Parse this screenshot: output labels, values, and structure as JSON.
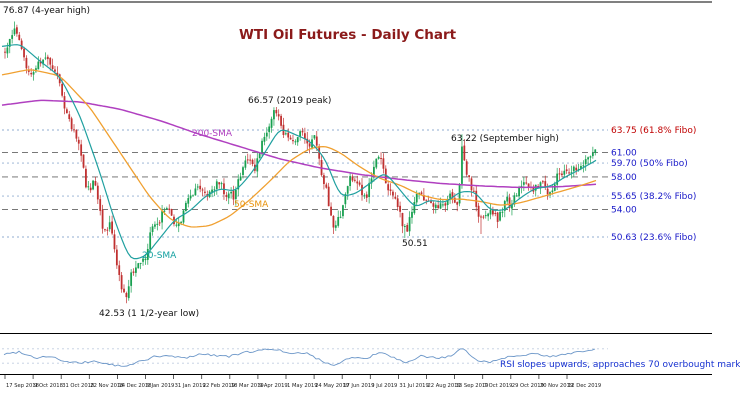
{
  "chart_data": {
    "type": "candlestick",
    "title": "WTI Oil Futures - Daily Chart",
    "xlabel": "",
    "ylabel": "",
    "ylim": [
      41,
      79
    ],
    "grid": false,
    "x_axis": {
      "labels": [
        "17 Sep 2018",
        "9 Oct 2018",
        "31 Oct 2018",
        "22 Nov 2018",
        "14 Dec 2018",
        "9 Jan 2019",
        "31 Jan 2019",
        "22 Feb 2019",
        "18 Mar 2019",
        "9 Apr 2019",
        "1 May 2019",
        "24 May 2019",
        "17 Jun 2019",
        "9 Jul 2019",
        "31 Jul 2019",
        "22 Aug 2019",
        "13 Sep 2019",
        "7 Oct 2019",
        "29 Oct 2019",
        "20 Nov 2019",
        "12 Dec 2019"
      ]
    },
    "levels": [
      {
        "price": 63.75,
        "label": "63.75 (61.8% Fibo)",
        "label_color": "#c00000",
        "line_style": "fibo"
      },
      {
        "price": 61.0,
        "label": "61.00",
        "label_color": "#1818c8",
        "line_style": "round"
      },
      {
        "price": 59.7,
        "label": "59.70 (50% Fibo)",
        "label_color": "#1818c8",
        "line_style": "fibo"
      },
      {
        "price": 58.0,
        "label": "58.00",
        "label_color": "#1818c8",
        "line_style": "round"
      },
      {
        "price": 55.65,
        "label": "55.65 (38.2% Fibo)",
        "label_color": "#1818c8",
        "line_style": "fibo"
      },
      {
        "price": 54.0,
        "label": "54.00",
        "label_color": "#1818c8",
        "line_style": "round"
      },
      {
        "price": 50.63,
        "label": "50.63 (23.6% Fibo)",
        "label_color": "#1818c8",
        "line_style": "fibo"
      }
    ],
    "key_points": {
      "four_year_high": 76.87,
      "year_and_half_low": 42.53,
      "peak_2019": 66.57,
      "september_high": 63.22,
      "august_low": 50.51
    },
    "annotations": [
      {
        "name": "four-year-high-label",
        "text": "76.87 (4-year high)",
        "x": 3,
        "y": 13
      },
      {
        "name": "peak-2019-label",
        "text": "66.57 (2019 peak)",
        "x": 248,
        "y": 103
      },
      {
        "name": "september-high-label",
        "text": "63.22 (September high)",
        "x": 451,
        "y": 141
      },
      {
        "name": "august-low-label",
        "text": "50.51",
        "x": 402,
        "y": 246
      },
      {
        "name": "year-low-label",
        "text": "42.53 (1 1/2-year low)",
        "x": 99,
        "y": 316
      },
      {
        "name": "sma200-label",
        "text": "200-SMA",
        "color": "#b040c0",
        "x": 192,
        "y": 136
      },
      {
        "name": "sma50-label",
        "text": "50-SMA",
        "color": "#e8920a",
        "x": 234,
        "y": 207
      },
      {
        "name": "sma20-label",
        "text": "20-SMA",
        "color": "#13a0a0",
        "x": 142,
        "y": 258
      }
    ],
    "price_path": [
      [
        5,
        73.5
      ],
      [
        12,
        75.5
      ],
      [
        15,
        76.3
      ],
      [
        20,
        74.8
      ],
      [
        26,
        71.5
      ],
      [
        32,
        70.8
      ],
      [
        38,
        72.2
      ],
      [
        46,
        72.6
      ],
      [
        52,
        71.8
      ],
      [
        58,
        70.0
      ],
      [
        64,
        67.0
      ],
      [
        70,
        64.5
      ],
      [
        76,
        63.2
      ],
      [
        82,
        60.5
      ],
      [
        86,
        57.0
      ],
      [
        90,
        56.5
      ],
      [
        94,
        58.0
      ],
      [
        98,
        55.5
      ],
      [
        102,
        52.0
      ],
      [
        106,
        51.5
      ],
      [
        110,
        52.5
      ],
      [
        114,
        50.0
      ],
      [
        118,
        46.5
      ],
      [
        122,
        44.0
      ],
      [
        126,
        43.2
      ],
      [
        130,
        45.5
      ],
      [
        134,
        46.8
      ],
      [
        138,
        47.5
      ],
      [
        142,
        48.0
      ],
      [
        146,
        47.8
      ],
      [
        150,
        51.0
      ],
      [
        154,
        52.3
      ],
      [
        158,
        52.0
      ],
      [
        162,
        53.5
      ],
      [
        166,
        54.0
      ],
      [
        170,
        53.8
      ],
      [
        174,
        52.5
      ],
      [
        178,
        51.8
      ],
      [
        182,
        53.0
      ],
      [
        186,
        54.5
      ],
      [
        190,
        55.5
      ],
      [
        194,
        55.8
      ],
      [
        198,
        57.0
      ],
      [
        202,
        56.5
      ],
      [
        206,
        55.3
      ],
      [
        210,
        55.8
      ],
      [
        214,
        56.8
      ],
      [
        218,
        57.3
      ],
      [
        222,
        56.8
      ],
      [
        226,
        55.8
      ],
      [
        230,
        56.5
      ],
      [
        234,
        55.5
      ],
      [
        238,
        57.5
      ],
      [
        242,
        59.0
      ],
      [
        246,
        60.0
      ],
      [
        250,
        60.3
      ],
      [
        254,
        58.8
      ],
      [
        258,
        60.5
      ],
      [
        262,
        62.0
      ],
      [
        266,
        63.5
      ],
      [
        270,
        64.0
      ],
      [
        274,
        65.9
      ],
      [
        278,
        65.8
      ],
      [
        282,
        63.8
      ],
      [
        286,
        63.1
      ],
      [
        290,
        62.5
      ],
      [
        294,
        61.8
      ],
      [
        298,
        63.3
      ],
      [
        302,
        63.6
      ],
      [
        306,
        62.0
      ],
      [
        310,
        61.5
      ],
      [
        314,
        63.0
      ],
      [
        318,
        61.0
      ],
      [
        322,
        58.0
      ],
      [
        326,
        56.8
      ],
      [
        330,
        53.8
      ],
      [
        334,
        51.8
      ],
      [
        338,
        53.3
      ],
      [
        342,
        53.5
      ],
      [
        346,
        56.5
      ],
      [
        350,
        57.8
      ],
      [
        354,
        58.0
      ],
      [
        358,
        57.5
      ],
      [
        362,
        56.0
      ],
      [
        366,
        55.5
      ],
      [
        370,
        57.5
      ],
      [
        374,
        59.5
      ],
      [
        378,
        60.2
      ],
      [
        382,
        60.0
      ],
      [
        386,
        57.0
      ],
      [
        390,
        55.8
      ],
      [
        394,
        56.3
      ],
      [
        398,
        54.5
      ],
      [
        402,
        52.5
      ],
      [
        406,
        51.2
      ],
      [
        410,
        52.8
      ],
      [
        414,
        55.0
      ],
      [
        418,
        56.8
      ],
      [
        422,
        55.3
      ],
      [
        426,
        54.8
      ],
      [
        430,
        55.0
      ],
      [
        434,
        54.5
      ],
      [
        438,
        53.8
      ],
      [
        442,
        55.0
      ],
      [
        446,
        54.3
      ],
      [
        450,
        56.0
      ],
      [
        454,
        55.0
      ],
      [
        458,
        54.8
      ],
      [
        462,
        61.5
      ],
      [
        466,
        59.0
      ],
      [
        470,
        57.2
      ],
      [
        474,
        55.8
      ],
      [
        478,
        53.5
      ],
      [
        482,
        52.5
      ],
      [
        486,
        53.0
      ],
      [
        490,
        54.3
      ],
      [
        494,
        53.3
      ],
      [
        498,
        52.8
      ],
      [
        502,
        54.0
      ],
      [
        506,
        55.5
      ],
      [
        510,
        54.5
      ],
      [
        514,
        55.3
      ],
      [
        518,
        56.5
      ],
      [
        522,
        57.2
      ],
      [
        526,
        56.8
      ],
      [
        530,
        57.3
      ],
      [
        534,
        56.3
      ],
      [
        538,
        57.0
      ],
      [
        542,
        57.8
      ],
      [
        546,
        56.5
      ],
      [
        550,
        55.8
      ],
      [
        554,
        57.3
      ],
      [
        558,
        58.3
      ],
      [
        562,
        58.6
      ],
      [
        566,
        59.0
      ],
      [
        570,
        58.5
      ],
      [
        574,
        59.3
      ],
      [
        578,
        58.8
      ],
      [
        582,
        59.5
      ],
      [
        586,
        60.0
      ],
      [
        590,
        60.8
      ],
      [
        594,
        61.2
      ]
    ],
    "spikes": [
      {
        "x": 15,
        "price": 76.87,
        "dir": "high"
      },
      {
        "x": 126,
        "price": 42.53,
        "dir": "low"
      },
      {
        "x": 276,
        "price": 66.57,
        "dir": "high"
      },
      {
        "x": 333,
        "price": 51.0,
        "dir": "low"
      },
      {
        "x": 406,
        "price": 50.51,
        "dir": "low"
      },
      {
        "x": 462,
        "price": 63.22,
        "dir": "high"
      },
      {
        "x": 480,
        "price": 51.0,
        "dir": "low"
      }
    ],
    "sma200": [
      [
        2,
        66.8
      ],
      [
        40,
        67.4
      ],
      [
        80,
        67.2
      ],
      [
        120,
        66.3
      ],
      [
        160,
        64.9
      ],
      [
        200,
        63.2
      ],
      [
        240,
        61.7
      ],
      [
        280,
        60.2
      ],
      [
        320,
        59.1
      ],
      [
        360,
        58.3
      ],
      [
        400,
        57.7
      ],
      [
        440,
        57.2
      ],
      [
        480,
        56.9
      ],
      [
        520,
        56.7
      ],
      [
        560,
        56.8
      ],
      [
        597,
        57.1
      ]
    ],
    "sma50": [
      [
        2,
        70.5
      ],
      [
        30,
        71.2
      ],
      [
        60,
        70.4
      ],
      [
        90,
        66.5
      ],
      [
        120,
        61.0
      ],
      [
        150,
        55.5
      ],
      [
        170,
        52.8
      ],
      [
        190,
        51.8
      ],
      [
        210,
        52.0
      ],
      [
        230,
        53.2
      ],
      [
        250,
        55.2
      ],
      [
        270,
        57.5
      ],
      [
        290,
        60.0
      ],
      [
        310,
        61.5
      ],
      [
        325,
        61.8
      ],
      [
        340,
        61.0
      ],
      [
        360,
        59.2
      ],
      [
        380,
        57.8
      ],
      [
        400,
        57.0
      ],
      [
        420,
        55.8
      ],
      [
        440,
        55.2
      ],
      [
        460,
        55.3
      ],
      [
        480,
        55.0
      ],
      [
        500,
        54.5
      ],
      [
        520,
        54.8
      ],
      [
        540,
        55.5
      ],
      [
        560,
        56.2
      ],
      [
        580,
        56.9
      ],
      [
        597,
        57.6
      ]
    ],
    "sma20": [
      [
        2,
        74.0
      ],
      [
        20,
        74.3
      ],
      [
        40,
        72.2
      ],
      [
        60,
        70.3
      ],
      [
        80,
        65.5
      ],
      [
        100,
        58.5
      ],
      [
        115,
        52.5
      ],
      [
        130,
        47.8
      ],
      [
        145,
        48.2
      ],
      [
        160,
        50.5
      ],
      [
        175,
        52.8
      ],
      [
        190,
        53.8
      ],
      [
        205,
        55.6
      ],
      [
        220,
        56.6
      ],
      [
        235,
        56.2
      ],
      [
        250,
        58.2
      ],
      [
        265,
        61.0
      ],
      [
        280,
        64.0
      ],
      [
        295,
        63.2
      ],
      [
        310,
        62.4
      ],
      [
        325,
        60.3
      ],
      [
        340,
        55.6
      ],
      [
        355,
        55.9
      ],
      [
        370,
        57.2
      ],
      [
        385,
        58.6
      ],
      [
        400,
        56.4
      ],
      [
        415,
        54.2
      ],
      [
        430,
        55.2
      ],
      [
        445,
        54.8
      ],
      [
        460,
        56.2
      ],
      [
        475,
        56.2
      ],
      [
        490,
        53.9
      ],
      [
        505,
        53.9
      ],
      [
        520,
        55.4
      ],
      [
        535,
        56.6
      ],
      [
        550,
        56.8
      ],
      [
        565,
        58.0
      ],
      [
        580,
        58.9
      ],
      [
        597,
        60.1
      ]
    ],
    "rsi": {
      "note": "RSI slopes upwards, approaches 70 overbought mark",
      "guides": [
        70,
        30
      ],
      "points": [
        [
          5,
          55
        ],
        [
          20,
          62
        ],
        [
          35,
          45
        ],
        [
          50,
          50
        ],
        [
          65,
          34
        ],
        [
          80,
          30
        ],
        [
          95,
          36
        ],
        [
          110,
          26
        ],
        [
          126,
          20
        ],
        [
          140,
          36
        ],
        [
          155,
          48
        ],
        [
          170,
          50
        ],
        [
          185,
          44
        ],
        [
          200,
          56
        ],
        [
          215,
          52
        ],
        [
          230,
          49
        ],
        [
          245,
          60
        ],
        [
          260,
          66
        ],
        [
          276,
          70
        ],
        [
          290,
          54
        ],
        [
          305,
          60
        ],
        [
          320,
          38
        ],
        [
          334,
          24
        ],
        [
          350,
          46
        ],
        [
          365,
          42
        ],
        [
          380,
          60
        ],
        [
          395,
          44
        ],
        [
          406,
          28
        ],
        [
          420,
          50
        ],
        [
          435,
          45
        ],
        [
          450,
          48
        ],
        [
          462,
          70
        ],
        [
          478,
          38
        ],
        [
          490,
          33
        ],
        [
          505,
          46
        ],
        [
          520,
          53
        ],
        [
          535,
          56
        ],
        [
          550,
          47
        ],
        [
          565,
          56
        ],
        [
          580,
          62
        ],
        [
          595,
          68
        ]
      ]
    },
    "colors": {
      "up": "#18a050",
      "down": "#c03030",
      "sma200": "#b040c0",
      "sma50": "#f0a030",
      "sma20": "#20a0a0",
      "fibo_line": "#90aed0",
      "round_line": "#666666",
      "rsi_line": "#6b96c8",
      "rsi_note": "#1530d0",
      "title": "#8b1a1a",
      "border": "#000000"
    }
  }
}
